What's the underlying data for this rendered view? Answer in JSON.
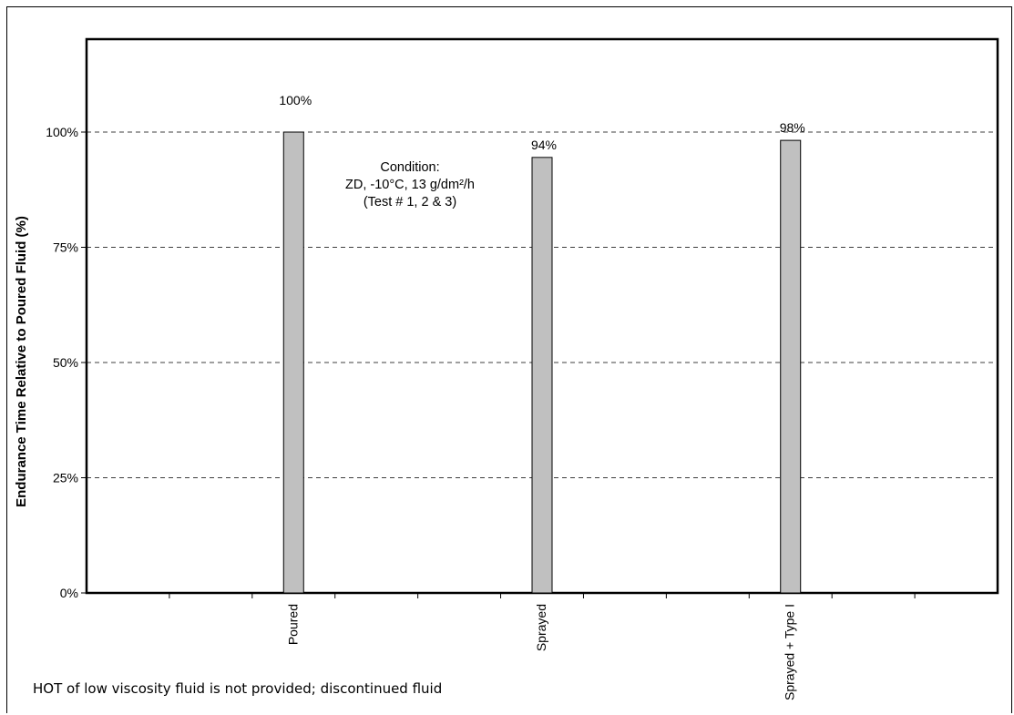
{
  "chart_data": {
    "type": "bar",
    "categories": [
      "Poured",
      "Sprayed",
      "Sprayed + Type I"
    ],
    "values": [
      100,
      94.5,
      98.2
    ],
    "data_labels": [
      "100%",
      "94%",
      "98%"
    ],
    "ylabel": "Endurance Time Relative to Poured Fluid (%)",
    "xlabel": "",
    "ylim": [
      0,
      120
    ],
    "yticks": [
      0,
      25,
      50,
      75,
      100
    ],
    "ytick_labels": [
      "0%",
      "25%",
      "50%",
      "75%",
      "100%"
    ],
    "grid": true,
    "bar_color": "#c0c0c0",
    "annotation": {
      "lines": [
        "Condition:",
        "ZD, -10°C, 13 g/dm²/h",
        "(Test # 1, 2 & 3)"
      ]
    },
    "note": "HOT of low viscosity fluid is not provided; discontinued fluid"
  }
}
